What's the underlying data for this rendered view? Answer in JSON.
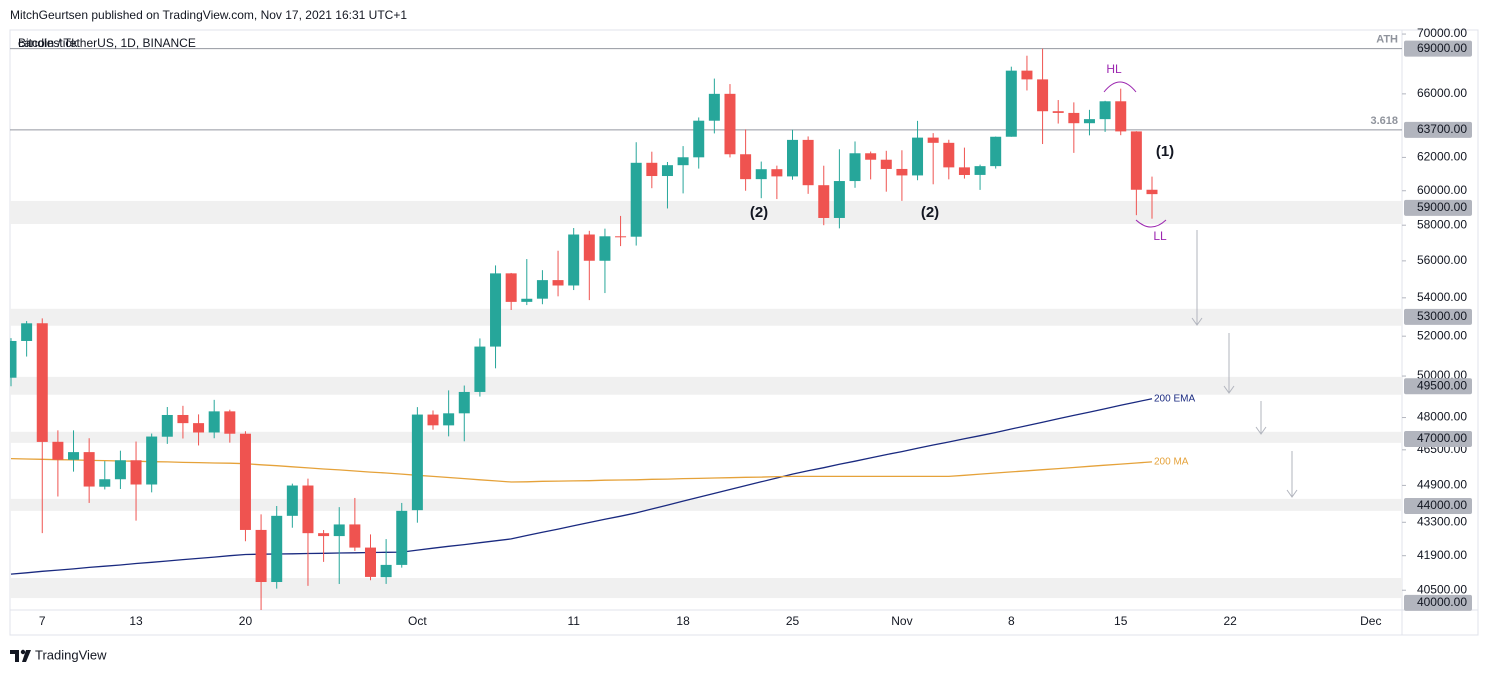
{
  "header": {
    "publisher": "MitchGeurtsen published on TradingView.com, Nov 17, 2021 16:31 UTC+1",
    "symbol": "Bitcoin / TetherUS, 1D, BINANCE"
  },
  "footer": {
    "brand": "TradingView"
  },
  "chart_data": {
    "type": "candlestick",
    "log_scale": true,
    "grid": false,
    "ylim": [
      39720,
      70280
    ],
    "yticks": [
      {
        "value": 70000,
        "label": "70000.00"
      },
      {
        "value": 66000,
        "label": "66000.00"
      },
      {
        "value": 62000,
        "label": "62000.00"
      },
      {
        "value": 60000,
        "label": "60000.00"
      },
      {
        "value": 58000,
        "label": "58000.00"
      },
      {
        "value": 56000,
        "label": "56000.00"
      },
      {
        "value": 54000,
        "label": "54000.00"
      },
      {
        "value": 52000,
        "label": "52000.00"
      },
      {
        "value": 50000,
        "label": "50000.00"
      },
      {
        "value": 48000,
        "label": "48000.00"
      },
      {
        "value": 46500,
        "label": "46500.00"
      },
      {
        "value": 44900,
        "label": "44900.00"
      },
      {
        "value": 43300,
        "label": "43300.00"
      },
      {
        "value": 41900,
        "label": "41900.00"
      },
      {
        "value": 40500,
        "label": "40500.00"
      }
    ],
    "categories": [
      null,
      null,
      "7",
      null,
      null,
      null,
      null,
      null,
      "13",
      null,
      null,
      null,
      null,
      null,
      null,
      "20",
      null,
      null,
      null,
      null,
      null,
      null,
      null,
      null,
      null,
      null,
      "Oct",
      null,
      null,
      null,
      null,
      null,
      null,
      null,
      null,
      null,
      "11",
      null,
      null,
      null,
      null,
      null,
      null,
      "18",
      null,
      null,
      null,
      null,
      null,
      null,
      "25",
      null,
      null,
      null,
      null,
      null,
      null,
      "Nov",
      null,
      null,
      null,
      null,
      null,
      null,
      "8",
      null,
      null,
      null,
      null,
      null,
      null,
      "15",
      null,
      null,
      null,
      null,
      null,
      null,
      "22",
      null,
      null,
      null,
      null,
      null,
      null,
      null,
      null,
      "Dec"
    ],
    "open": [
      49918,
      51756,
      52666,
      46868,
      46048,
      46395,
      44842,
      45173,
      46025,
      44940,
      47103,
      48121,
      47737,
      47299,
      48293,
      47242,
      42976,
      40829,
      43576,
      44895,
      42839,
      42716,
      43209,
      42236,
      41025,
      41522,
      43820,
      48141,
      47632,
      48200,
      49225,
      51471,
      55316,
      53786,
      53955,
      54950,
      54660,
      57471,
      56006,
      57370,
      57347,
      61672,
      60875,
      61528,
      62005,
      64280,
      66002,
      62193,
      60689,
      61286,
      60853,
      63078,
      60328,
      58414,
      60575,
      62253,
      61859,
      61300,
      60911,
      63220,
      62896,
      61396,
      60941,
      61471,
      63274,
      67525,
      66947,
      64883,
      64774,
      64122,
      64380,
      65520,
      63606,
      60058,
      null,
      null,
      null,
      null,
      null,
      null,
      null,
      null,
      null,
      null,
      null,
      null,
      null,
      null
    ],
    "high": [
      51900,
      52780,
      52920,
      47400,
      47399,
      47033,
      45987,
      46460,
      46880,
      47250,
      48500,
      48557,
      48150,
      48843,
      48372,
      47358,
      43639,
      44000,
      44978,
      45200,
      42972,
      43950,
      44350,
      42787,
      42590,
      44132,
      48495,
      48336,
      49300,
      49536,
      51886,
      55750,
      55339,
      56100,
      55490,
      56561,
      57839,
      57680,
      57804,
      58532,
      62933,
      62350,
      61720,
      62695,
      64486,
      67000,
      66639,
      63732,
      61747,
      61500,
      63710,
      63293,
      61496,
      62499,
      62980,
      62359,
      62405,
      62437,
      64270,
      63500,
      63086,
      62600,
      61560,
      63286,
      67789,
      68524,
      69000,
      65600,
      65450,
      64971,
      65550,
      66339,
      63620,
      60840,
      null,
      null,
      null,
      null,
      null,
      null,
      null,
      null,
      null,
      null,
      null,
      null,
      null,
      null
    ],
    "low": [
      49500,
      50969,
      42843,
      44412,
      45513,
      44132,
      44722,
      44742,
      43370,
      44594,
      46773,
      47021,
      46700,
      47033,
      46829,
      42500,
      39600,
      40565,
      43069,
      40675,
      41646,
      40750,
      42098,
      40900,
      40753,
      41410,
      43283,
      47430,
      47120,
      46891,
      49000,
      50382,
      53357,
      53617,
      53661,
      54080,
      54415,
      53879,
      54254,
      56819,
      56850,
      60150,
      58963,
      59844,
      61322,
      63482,
      62000,
      60000,
      59562,
      59510,
      60650,
      59817,
      58000,
      57820,
      60174,
      60673,
      59945,
      59405,
      60624,
      60382,
      60677,
      60721,
      60050,
      61322,
      63273,
      66222,
      62822,
      64100,
      62278,
      63360,
      63576,
      63371,
      58574,
      58373,
      null,
      null,
      null,
      null,
      null,
      null,
      null,
      null,
      null,
      null,
      null,
      null,
      null,
      null
    ],
    "close": [
      51756,
      52663,
      46863,
      46048,
      46395,
      44850,
      45173,
      46025,
      44940,
      47111,
      48121,
      47737,
      47299,
      48293,
      47242,
      42975,
      40829,
      43576,
      44895,
      42839,
      42716,
      43208,
      42235,
      41034,
      41522,
      43790,
      48141,
      47634,
      48200,
      49224,
      51471,
      55315,
      53785,
      53951,
      54949,
      54659,
      57471,
      56006,
      57370,
      57347,
      61672,
      60875,
      61528,
      62009,
      64280,
      66001,
      62193,
      60688,
      61286,
      60853,
      63078,
      60328,
      58413,
      60575,
      62253,
      61859,
      61300,
      60911,
      63219,
      62896,
      61395,
      60937,
      61470,
      63273,
      67525,
      66947,
      64882,
      64774,
      64122,
      64380,
      65519,
      63607,
      60058,
      59800,
      null,
      null,
      null,
      null,
      null,
      null,
      null,
      null,
      null,
      null,
      null,
      null,
      null,
      null
    ],
    "up_color": "#26a69a",
    "down_color": "#ef5350",
    "series": [
      {
        "name": "200 EMA",
        "color": "#1a2a80",
        "values": [
          41150,
          41200,
          41260,
          41310,
          41360,
          41420,
          41470,
          41520,
          41580,
          41630,
          41680,
          41740,
          41790,
          41840,
          41900,
          41950,
          41960,
          41970,
          41980,
          41990,
          42000,
          42010,
          42020,
          42030,
          42040,
          42050,
          42130,
          42210,
          42290,
          42360,
          42440,
          42520,
          42600,
          42740,
          42880,
          43010,
          43150,
          43290,
          43430,
          43560,
          43700,
          43870,
          44040,
          44210,
          44380,
          44550,
          44720,
          44890,
          45060,
          45230,
          45400,
          45550,
          45690,
          45840,
          45980,
          46130,
          46280,
          46420,
          46570,
          46720,
          46860,
          47010,
          47150,
          47300,
          47460,
          47620,
          47780,
          47940,
          48100,
          48260,
          48420,
          48580,
          48740,
          48900,
          null,
          null,
          null,
          null,
          null,
          null,
          null,
          null,
          null,
          null,
          null,
          null,
          null,
          null
        ]
      },
      {
        "name": "200 MA",
        "color": "#e5a23a",
        "values": [
          46100,
          46080,
          46070,
          46050,
          46040,
          46020,
          46010,
          45990,
          45980,
          45960,
          45950,
          45930,
          45920,
          45900,
          45890,
          45870,
          45820,
          45780,
          45730,
          45680,
          45630,
          45590,
          45540,
          45490,
          45450,
          45400,
          45350,
          45300,
          45250,
          45200,
          45150,
          45100,
          45050,
          45060,
          45080,
          45090,
          45100,
          45110,
          45130,
          45140,
          45150,
          45170,
          45180,
          45200,
          45210,
          45230,
          45240,
          45260,
          45270,
          45290,
          45300,
          45300,
          45300,
          45300,
          45300,
          45300,
          45300,
          45300,
          45300,
          45300,
          45300,
          45350,
          45400,
          45450,
          45500,
          45550,
          45600,
          45650,
          45700,
          45750,
          45800,
          45850,
          45900,
          45950,
          null,
          null,
          null,
          null,
          null,
          null,
          null,
          null,
          null,
          null,
          null,
          null,
          null,
          null
        ]
      }
    ],
    "levels": [
      {
        "value": 69000,
        "label": "69000.00",
        "note": "ATH"
      },
      {
        "value": 63700,
        "label": "63700.00",
        "note": "3.618"
      },
      {
        "value": 59000,
        "label": "59000.00",
        "band": [
          58070,
          59400
        ]
      },
      {
        "value": 53000,
        "label": "53000.00",
        "band": [
          52540,
          53420
        ]
      },
      {
        "value": 49500,
        "label": "49500.00",
        "band": [
          49090,
          49960
        ]
      },
      {
        "value": 47000,
        "label": "47000.00",
        "band": [
          46820,
          47330
        ]
      },
      {
        "value": 44000,
        "label": "44000.00",
        "band": [
          43790,
          44310
        ]
      },
      {
        "value": 40000,
        "label": "40000.00",
        "band": [
          40190,
          40990
        ]
      }
    ],
    "annotations": [
      "(2)",
      "(2)",
      "(1)",
      "HL",
      "LL"
    ]
  }
}
